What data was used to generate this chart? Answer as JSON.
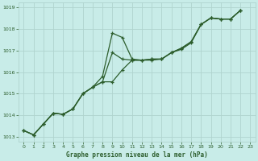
{
  "title": "Graphe pression niveau de la mer (hPa)",
  "bg_color": "#c8ece8",
  "grid_color": "#b0d4ce",
  "line_color": "#2d5e2d",
  "xlim": [
    -0.5,
    23.5
  ],
  "ylim": [
    1012.8,
    1019.2
  ],
  "yticks": [
    1013,
    1014,
    1015,
    1016,
    1017,
    1018,
    1019
  ],
  "xticks": [
    0,
    1,
    2,
    3,
    4,
    5,
    6,
    7,
    8,
    9,
    10,
    11,
    12,
    13,
    14,
    15,
    16,
    17,
    18,
    19,
    20,
    21,
    22,
    23
  ],
  "series1_x": [
    0,
    1,
    2,
    3,
    4,
    5,
    6,
    7,
    8,
    9,
    10,
    11,
    12,
    13,
    14,
    15,
    16,
    17,
    18,
    19,
    20,
    21,
    22
  ],
  "series1_y": [
    1013.3,
    1013.1,
    1013.6,
    1014.1,
    1014.05,
    1014.3,
    1015.0,
    1015.3,
    1015.8,
    1017.8,
    1017.6,
    1016.6,
    1016.55,
    1016.55,
    1016.6,
    1016.9,
    1017.05,
    1017.35,
    1018.2,
    1018.5,
    1018.45,
    1018.45,
    1018.85
  ],
  "series2_x": [
    0,
    1,
    2,
    3,
    4,
    5,
    6,
    7,
    8,
    9,
    10,
    11,
    12,
    13,
    14,
    15,
    16,
    17,
    18,
    19,
    20,
    21,
    22
  ],
  "series2_y": [
    1013.3,
    1013.1,
    1013.6,
    1014.1,
    1014.05,
    1014.3,
    1015.0,
    1015.3,
    1015.55,
    1016.9,
    1016.6,
    1016.55,
    1016.55,
    1016.6,
    1016.6,
    1016.9,
    1017.1,
    1017.4,
    1018.2,
    1018.5,
    1018.45,
    1018.45,
    1018.85
  ],
  "series3_x": [
    0,
    1,
    2,
    3,
    4,
    5,
    6,
    7,
    8,
    9,
    10,
    11,
    12,
    13,
    14,
    15,
    16,
    17,
    18,
    19,
    20,
    21,
    22
  ],
  "series3_y": [
    1013.3,
    1013.1,
    1013.6,
    1014.1,
    1014.05,
    1014.3,
    1015.0,
    1015.3,
    1015.55,
    1015.55,
    1016.1,
    1016.55,
    1016.55,
    1016.6,
    1016.6,
    1016.9,
    1017.1,
    1017.4,
    1018.2,
    1018.5,
    1018.45,
    1018.45,
    1018.85
  ]
}
